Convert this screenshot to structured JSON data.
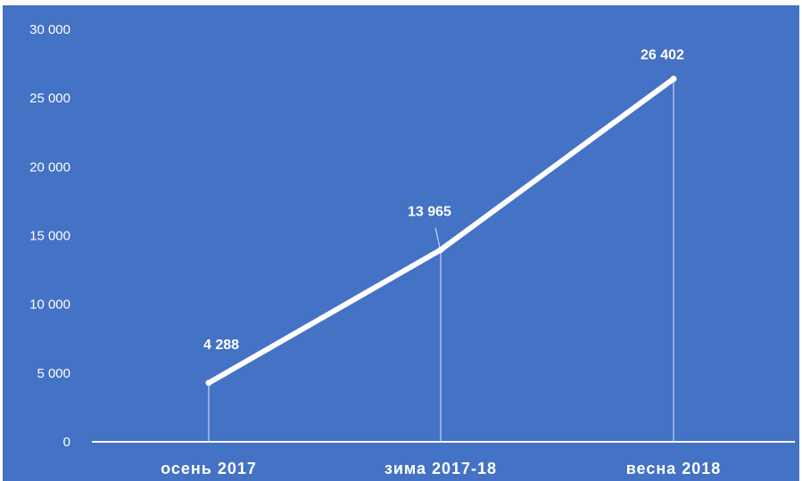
{
  "chart_data": {
    "type": "line",
    "categories": [
      "осень 2017",
      "зима 2017-18",
      "весна 2018"
    ],
    "values": [
      4288,
      13965,
      26402
    ],
    "data_labels": [
      "4 288",
      "13 965",
      "26 402"
    ],
    "y_ticks": [
      0,
      5000,
      10000,
      15000,
      20000,
      25000,
      30000
    ],
    "y_tick_labels": [
      "0",
      "5 000",
      "10 000",
      "15 000",
      "20 000",
      "25 000",
      "30 000"
    ],
    "ylim": [
      0,
      30000
    ],
    "title": "",
    "xlabel": "",
    "ylabel": "",
    "grid": false,
    "legend": "none",
    "colors": {
      "background": "#4472c4",
      "line": "#ffffff",
      "text": "#ffffff"
    }
  }
}
